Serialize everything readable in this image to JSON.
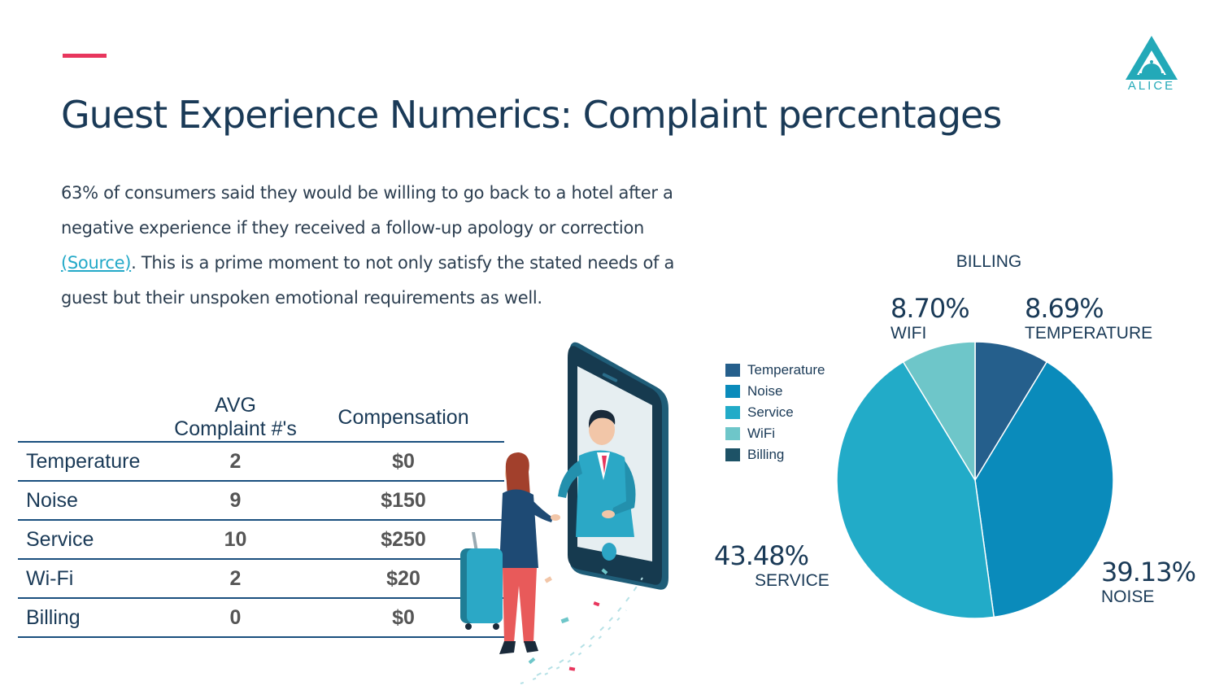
{
  "header": {
    "title": "Guest Experience Numerics: Complaint percentages",
    "logo_text": "ALICE"
  },
  "intro": {
    "text_before": "63% of consumers said they would be willing to go back to a hotel after a negative experience if they received a follow-up apology or correction ",
    "link_text": "(Source)",
    "text_after": ". This is a prime moment to not only satisfy the stated needs of a guest but their unspoken emotional requirements as well."
  },
  "table": {
    "headers": [
      "",
      "AVG Complaint #'s",
      "Compensation"
    ],
    "rows": [
      {
        "category": "Temperature",
        "complaints": "2",
        "compensation": "$0"
      },
      {
        "category": "Noise",
        "complaints": "9",
        "compensation": "$150"
      },
      {
        "category": "Service",
        "complaints": "10",
        "compensation": "$250"
      },
      {
        "category": "Wi-Fi",
        "complaints": "2",
        "compensation": "$20"
      },
      {
        "category": "Billing",
        "complaints": "0",
        "compensation": "$0"
      }
    ]
  },
  "chart_data": {
    "type": "pie",
    "legend_position": "left",
    "slices": [
      {
        "legend": "Temperature",
        "label": "TEMPERATURE",
        "value": 8.69,
        "pct_text": "8.69%",
        "color": "#255f8c"
      },
      {
        "legend": "Noise",
        "label": "NOISE",
        "value": 39.13,
        "pct_text": "39.13%",
        "color": "#0a8bbb"
      },
      {
        "legend": "Service",
        "label": "SERVICE",
        "value": 43.48,
        "pct_text": "43.48%",
        "color": "#22abc8"
      },
      {
        "legend": "WiFi",
        "label": "WIFI",
        "value": 8.7,
        "pct_text": "8.70%",
        "color": "#6ec6c9"
      },
      {
        "legend": "Billing",
        "label": "BILLING",
        "value": 0,
        "pct_text": "",
        "color": "#1d5266"
      }
    ]
  },
  "colors": {
    "accent": "#e8365d",
    "title": "#1a3a57",
    "link": "#23a9c8",
    "table_rule": "#1a4f7e",
    "logo": "#23a9b8"
  }
}
